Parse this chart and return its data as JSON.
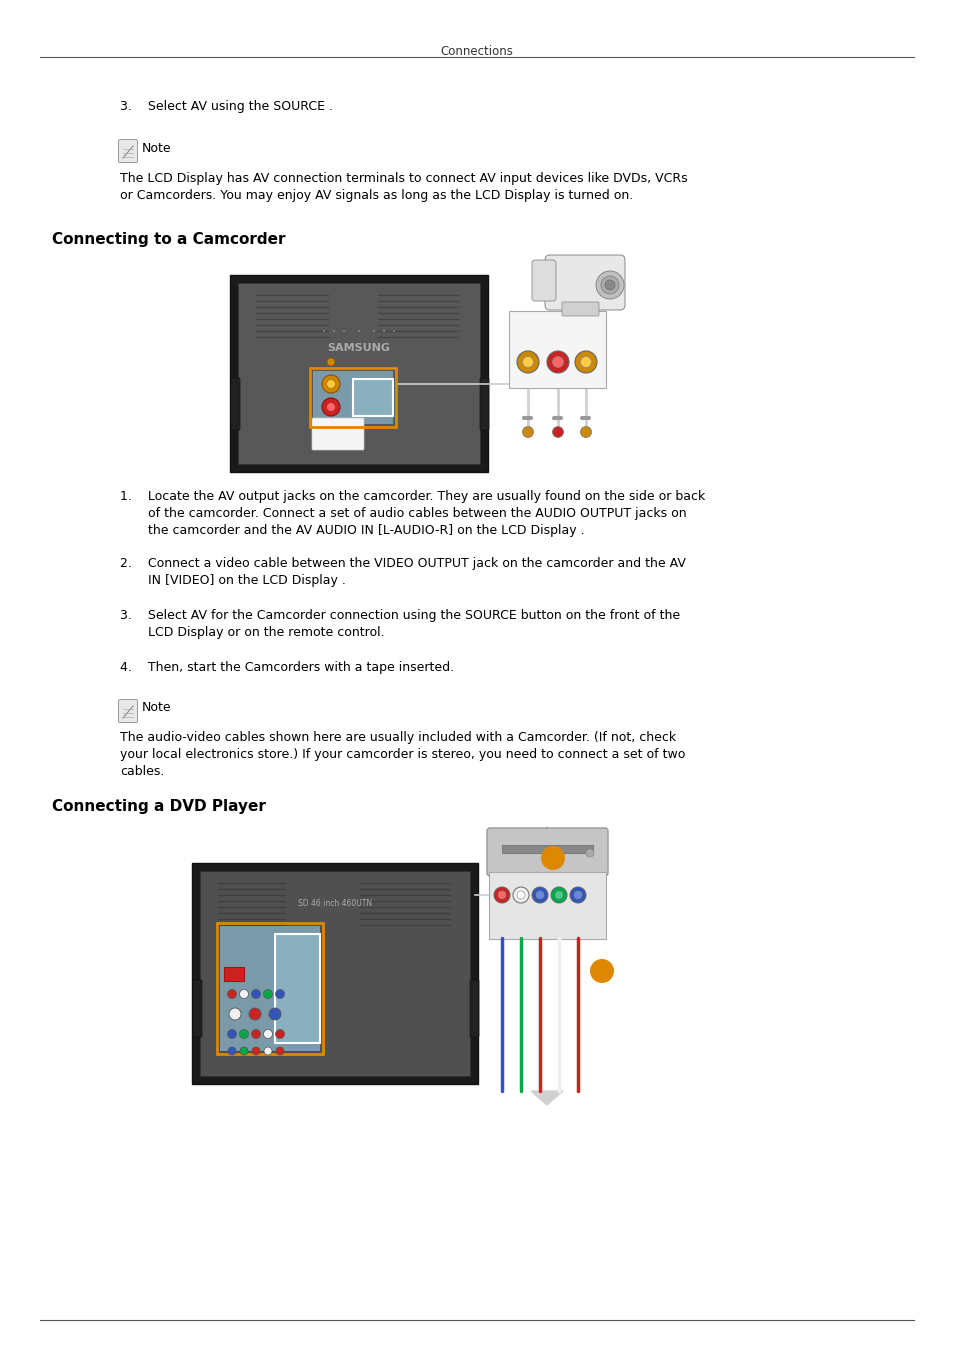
{
  "bg_color": "#ffffff",
  "page_title": "Connections",
  "step3_text": "3.    Select AV using the SOURCE .",
  "note_label": "Note",
  "note1_body": "The LCD Display has AV connection terminals to connect AV input devices like DVDs, VCRs\nor Camcorders. You may enjoy AV signals as long as the LCD Display is turned on.",
  "section1_title": "Connecting to a Camcorder",
  "cam_step1": "1.    Locate the AV output jacks on the camcorder. They are usually found on the side or back\n       of the camcorder. Connect a set of audio cables between the AUDIO OUTPUT jacks on\n       the camcorder and the AV AUDIO IN [L-AUDIO-R] on the LCD Display .",
  "cam_step2": "2.    Connect a video cable between the VIDEO OUTPUT jack on the camcorder and the AV\n       IN [VIDEO] on the LCD Display .",
  "cam_step3": "3.    Select AV for the Camcorder connection using the SOURCE button on the front of the\n       LCD Display or on the remote control.",
  "cam_step4": "4.    Then, start the Camcorders with a tape inserted.",
  "note2_body": "The audio-video cables shown here are usually included with a Camcorder. (If not, check\nyour local electronics store.) If your camcorder is stereo, you need to connect a set of two\ncables.",
  "section2_title": "Connecting a DVD Player",
  "fs_title": 8.5,
  "fs_section": 11,
  "fs_body": 9,
  "fs_note": 9,
  "ml": 52,
  "il": 120,
  "text_indent": 145
}
